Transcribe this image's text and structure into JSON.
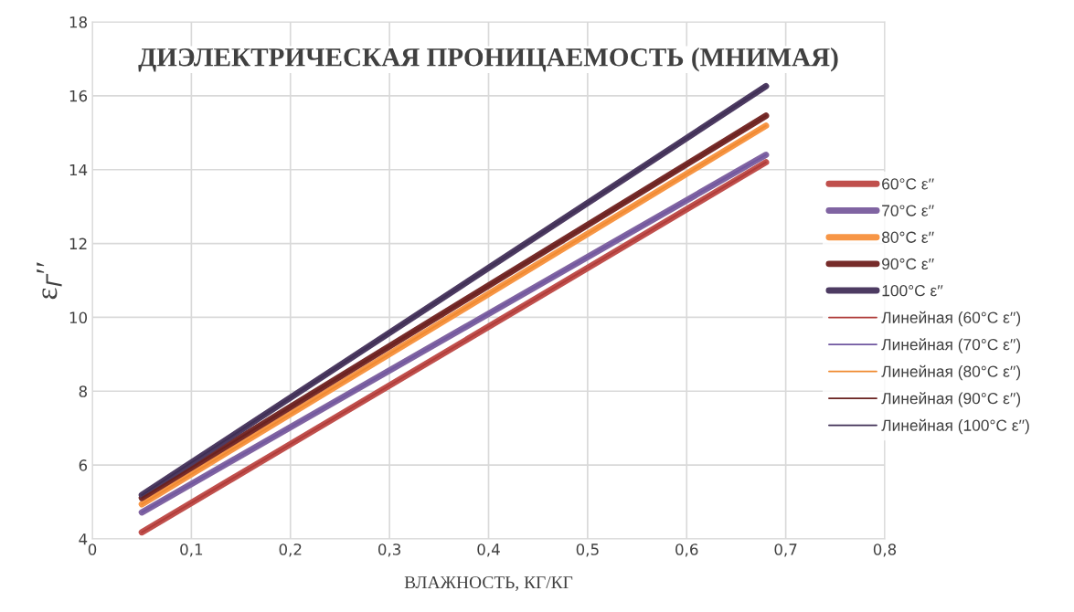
{
  "chart_data": {
    "type": "line",
    "title": "ДИЭЛЕКТРИЧЕСКАЯ ПРОНИЦАЕМОСТЬ (МНИМАЯ)",
    "xlabel": "ВЛАЖНОСТЬ, КГ/КГ",
    "ylabel": "ε$_{Г}$′′",
    "xlim": [
      0,
      0.8
    ],
    "xticks": [
      {
        "value": 0,
        "label": "0"
      },
      {
        "value": 0.1,
        "label": "0,1"
      },
      {
        "value": 0.2,
        "label": "0,2"
      },
      {
        "value": 0.3,
        "label": "0,3"
      },
      {
        "value": 0.4,
        "label": "0,4"
      },
      {
        "value": 0.5,
        "label": "0,5"
      },
      {
        "value": 0.6,
        "label": "0,6"
      },
      {
        "value": 0.7,
        "label": "0,7"
      },
      {
        "value": 0.8,
        "label": "0,8"
      }
    ],
    "ylim": [
      4,
      18
    ],
    "yticks": [
      4,
      6,
      8,
      10,
      12,
      14,
      16,
      18
    ],
    "grid": true,
    "legend": "right",
    "marker": "none",
    "x": [
      0.05,
      0.68
    ],
    "series": [
      {
        "name": "60°C ε′′",
        "color": "#c0504d",
        "values": [
          4.18,
          14.2
        ]
      },
      {
        "name": "70°C ε′′",
        "color": "#8064a2",
        "values": [
          4.72,
          14.4
        ]
      },
      {
        "name": "80°C ε′′",
        "color": "#f79646",
        "values": [
          4.94,
          15.19
        ]
      },
      {
        "name": "90°C ε′′",
        "color": "#772c2a",
        "values": [
          5.11,
          15.46
        ]
      },
      {
        "name": "100°C ε′′",
        "color": "#4d3b62",
        "values": [
          5.19,
          16.26
        ]
      },
      {
        "name": "Линейная (60°C ε′′)",
        "color": "#b03c39",
        "values": [
          4.18,
          14.2
        ]
      },
      {
        "name": "Линейная (70°C ε′′)",
        "color": "#7057a0",
        "values": [
          4.72,
          14.4
        ]
      },
      {
        "name": "Линейная (80°C ε′′)",
        "color": "#f08a30",
        "values": [
          4.94,
          15.19
        ]
      },
      {
        "name": "Линейная (90°C ε′′)",
        "color": "#6a2220",
        "values": [
          5.11,
          15.46
        ]
      },
      {
        "name": "Линейная (100°C ε′′)",
        "color": "#3f2f55",
        "values": [
          5.19,
          16.26
        ]
      }
    ]
  }
}
